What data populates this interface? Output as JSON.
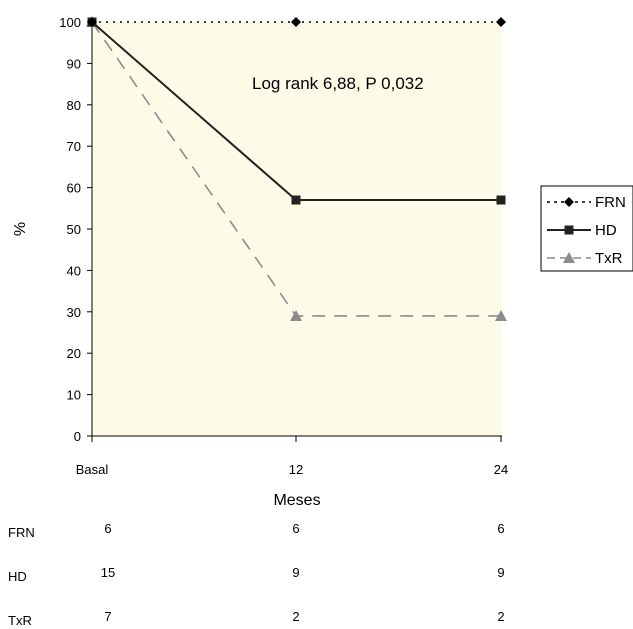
{
  "chart_data": {
    "type": "line",
    "categories": [
      "Basal",
      "12",
      "24"
    ],
    "xlabel": "Meses",
    "ylabel": "%",
    "ylim": [
      0,
      100
    ],
    "yticks": [
      0,
      10,
      20,
      30,
      40,
      50,
      60,
      70,
      80,
      90,
      100
    ],
    "grid": false,
    "legend": "right",
    "annotation": "Log rank 6,88, P 0,032",
    "plot_background": "#fdfbe8",
    "series": [
      {
        "name": "FRN",
        "values": [
          100,
          100,
          100
        ],
        "color": "#000000",
        "line": "dotted",
        "marker": "diamond"
      },
      {
        "name": "HD",
        "values": [
          100,
          57,
          57
        ],
        "color": "#222222",
        "line": "solid",
        "marker": "square"
      },
      {
        "name": "TxR",
        "values": [
          100,
          29,
          29
        ],
        "color": "#8c8c8c",
        "line": "dashed",
        "marker": "triangle"
      }
    ],
    "at_risk_table": [
      {
        "label": "FRN",
        "counts": [
          "6",
          "6",
          "6"
        ]
      },
      {
        "label": "HD",
        "counts": [
          "15",
          "9",
          "9"
        ]
      },
      {
        "label": "TxR",
        "counts": [
          "7",
          "2",
          "2"
        ]
      }
    ]
  }
}
